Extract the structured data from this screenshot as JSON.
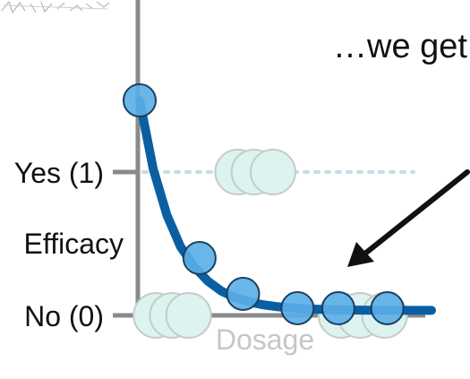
{
  "annotation": {
    "text": "…we get"
  },
  "chart_data": {
    "type": "scatter",
    "title": "",
    "xlabel": "Dosage",
    "ylabel": "Efficacy",
    "ytick_labels": [
      "No (0)",
      "Yes (1)"
    ],
    "ytick_values": [
      0,
      1
    ],
    "xlim": [
      0,
      10
    ],
    "ylim": [
      -0.05,
      1.65
    ],
    "grid": false,
    "series": [
      {
        "name": "",
        "kind": "points-highlighted",
        "color": "#5aaee8",
        "x": [
          0,
          2.2,
          3.8,
          5.8,
          7.3,
          9.1
        ],
        "y": [
          1.5,
          0.4,
          0.15,
          0.05,
          0.05,
          0.05
        ]
      },
      {
        "name": "",
        "kind": "points-faded",
        "color": "#dcf3ef",
        "x": [
          3.6,
          4.2,
          4.9,
          0.6,
          1.2,
          1.8,
          7.4,
          8.1,
          9.0
        ],
        "y": [
          1,
          1,
          1,
          0,
          0,
          0,
          0,
          0,
          0
        ]
      },
      {
        "name": "",
        "kind": "curve",
        "color": "#0a5fa3",
        "x": [
          0,
          0.5,
          1,
          1.5,
          2,
          2.5,
          3,
          3.5,
          4,
          4.5,
          5,
          5.5,
          6,
          6.5,
          7,
          7.5,
          8,
          8.5,
          9,
          9.5,
          10
        ],
        "y": [
          1.5,
          1.02,
          0.7,
          0.48,
          0.34,
          0.24,
          0.17,
          0.125,
          0.095,
          0.075,
          0.062,
          0.053,
          0.047,
          0.043,
          0.04,
          0.038,
          0.037,
          0.036,
          0.035,
          0.035,
          0.035
        ]
      }
    ],
    "reference_line": {
      "y": 1,
      "style": "dotted",
      "color": "#c7dde3"
    }
  }
}
